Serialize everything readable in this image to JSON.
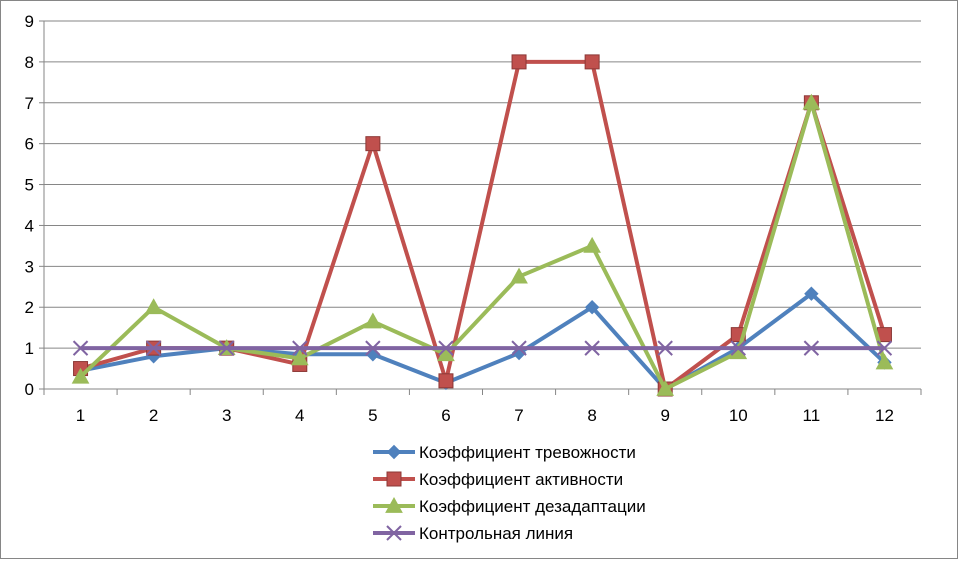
{
  "chart_data": {
    "type": "line",
    "title": "",
    "xlabel": "",
    "ylabel": "",
    "categories": [
      "1",
      "2",
      "3",
      "4",
      "5",
      "6",
      "7",
      "8",
      "9",
      "10",
      "11",
      "12"
    ],
    "ylim": [
      0,
      9
    ],
    "yticks": [
      "0",
      "1",
      "2",
      "3",
      "4",
      "5",
      "6",
      "7",
      "8",
      "9"
    ],
    "grid": {
      "horizontal": true,
      "vertical": false
    },
    "legend_position": "bottom-center",
    "series": [
      {
        "name": "Коэффициент тревожности",
        "color": "#4F81BD",
        "marker": "diamond",
        "values": [
          0.45,
          0.8,
          1.0,
          0.85,
          0.85,
          0.15,
          0.88,
          2.0,
          0.0,
          1.0,
          2.33,
          0.65
        ]
      },
      {
        "name": "Коэффициент активности",
        "color": "#C0504D",
        "marker": "square",
        "values": [
          0.5,
          1.0,
          1.0,
          0.6,
          6.0,
          0.2,
          8.0,
          8.0,
          0.0,
          1.33,
          7.0,
          1.33
        ]
      },
      {
        "name": "Коэффициент дезадаптации",
        "color": "#9BBB59",
        "marker": "triangle",
        "values": [
          0.3,
          2.0,
          1.0,
          0.75,
          1.65,
          0.85,
          2.75,
          3.5,
          0.0,
          0.9,
          7.0,
          0.65
        ]
      },
      {
        "name": "Контрольная линия",
        "color": "#8064A2",
        "marker": "x",
        "values": [
          1,
          1,
          1,
          1,
          1,
          1,
          1,
          1,
          1,
          1,
          1,
          1
        ]
      }
    ]
  }
}
